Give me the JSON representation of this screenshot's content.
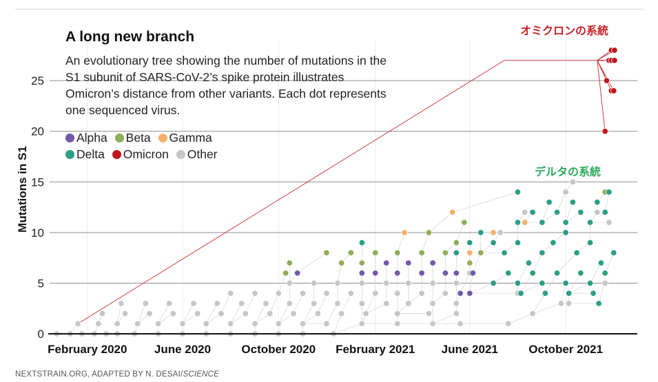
{
  "title": "A long new branch",
  "subtitle": "An evolutionary tree showing the number of mutations in the S1 subunit of SARS-CoV-2’s spike protein illustrates Omicron’s distance from other variants. Each dot represents one sequenced virus.",
  "annotations": {
    "omicron": "オミクロンの系統",
    "delta": "デルタの系統"
  },
  "source": {
    "text": "NEXTSTRAIN.ORG, ADAPTED BY N. DESAI/",
    "italic": "SCIENCE"
  },
  "colors": {
    "Alpha": "#7358a8",
    "Beta": "#8fae5a",
    "Gamma": "#f3b26b",
    "Delta": "#2c9e86",
    "Omicron": "#c0171d",
    "Other": "#c6c6c6"
  },
  "legend": [
    {
      "name": "Alpha"
    },
    {
      "name": "Beta"
    },
    {
      "name": "Gamma"
    },
    {
      "name": "Delta"
    },
    {
      "name": "Omicron"
    },
    {
      "name": "Other"
    }
  ],
  "chart_data": {
    "type": "scatter",
    "title": "A long new branch",
    "ylabel": "Mutations in S1",
    "xlabel": "",
    "xlim": [
      "2019-12-15",
      "2021-12-31"
    ],
    "ylim": [
      0,
      28
    ],
    "yticks": [
      0,
      5,
      10,
      15,
      20,
      25
    ],
    "xticks": [
      {
        "date": "2020-02-01",
        "label": "February 2020"
      },
      {
        "date": "2020-06-01",
        "label": "June 2020"
      },
      {
        "date": "2020-10-01",
        "label": "October 2020"
      },
      {
        "date": "2021-02-01",
        "label": "February 2021"
      },
      {
        "date": "2021-06-01",
        "label": "June 2021"
      },
      {
        "date": "2021-10-01",
        "label": "October 2021"
      }
    ],
    "grid": true,
    "legend_position": "top-left",
    "series": [
      {
        "name": "Other",
        "points": [
          [
            "2019-12-24",
            0
          ],
          [
            "2020-01-10",
            0
          ],
          [
            "2020-01-25",
            0
          ],
          [
            "2020-02-10",
            0
          ],
          [
            "2020-02-25",
            0
          ],
          [
            "2020-03-10",
            0
          ],
          [
            "2020-04-01",
            0
          ],
          [
            "2020-05-01",
            0
          ],
          [
            "2020-06-01",
            0
          ],
          [
            "2020-07-01",
            0
          ],
          [
            "2020-08-01",
            0
          ],
          [
            "2020-09-01",
            0
          ],
          [
            "2020-10-01",
            0
          ],
          [
            "2020-11-01",
            0
          ],
          [
            "2020-12-10",
            0
          ],
          [
            "2020-01-20",
            1
          ],
          [
            "2020-02-15",
            1
          ],
          [
            "2020-03-10",
            1
          ],
          [
            "2020-04-05",
            1
          ],
          [
            "2020-05-01",
            1
          ],
          [
            "2020-06-01",
            1
          ],
          [
            "2020-07-01",
            1
          ],
          [
            "2020-08-01",
            1
          ],
          [
            "2020-09-01",
            1
          ],
          [
            "2020-10-01",
            1
          ],
          [
            "2020-11-01",
            1
          ],
          [
            "2020-12-01",
            1
          ],
          [
            "2021-01-15",
            1
          ],
          [
            "2021-03-01",
            1
          ],
          [
            "2021-04-15",
            1
          ],
          [
            "2021-05-20",
            1
          ],
          [
            "2021-07-20",
            1
          ],
          [
            "2020-02-20",
            2
          ],
          [
            "2020-03-20",
            2
          ],
          [
            "2020-04-20",
            2
          ],
          [
            "2020-05-20",
            2
          ],
          [
            "2020-06-20",
            2
          ],
          [
            "2020-07-20",
            2
          ],
          [
            "2020-08-20",
            2
          ],
          [
            "2020-09-20",
            2
          ],
          [
            "2020-10-20",
            2
          ],
          [
            "2020-11-20",
            2
          ],
          [
            "2020-12-20",
            2
          ],
          [
            "2021-01-20",
            2
          ],
          [
            "2021-03-01",
            2
          ],
          [
            "2021-04-10",
            2
          ],
          [
            "2021-05-15",
            2
          ],
          [
            "2021-08-20",
            2
          ],
          [
            "2020-03-15",
            3
          ],
          [
            "2020-04-15",
            3
          ],
          [
            "2020-05-15",
            3
          ],
          [
            "2020-06-15",
            3
          ],
          [
            "2020-07-15",
            3
          ],
          [
            "2020-08-15",
            3
          ],
          [
            "2020-09-15",
            3
          ],
          [
            "2020-10-15",
            3
          ],
          [
            "2020-11-15",
            3
          ],
          [
            "2020-12-15",
            3
          ],
          [
            "2021-01-15",
            3
          ],
          [
            "2021-02-15",
            3
          ],
          [
            "2021-03-15",
            3
          ],
          [
            "2021-04-15",
            3
          ],
          [
            "2021-05-15",
            3
          ],
          [
            "2021-09-25",
            3
          ],
          [
            "2021-10-05",
            3
          ],
          [
            "2020-08-01",
            4
          ],
          [
            "2020-09-01",
            4
          ],
          [
            "2020-10-01",
            4
          ],
          [
            "2020-11-01",
            4
          ],
          [
            "2020-12-01",
            4
          ],
          [
            "2021-01-01",
            4
          ],
          [
            "2021-02-01",
            4
          ],
          [
            "2021-03-01",
            4
          ],
          [
            "2021-04-01",
            4
          ],
          [
            "2021-05-01",
            4
          ],
          [
            "2021-08-01",
            4
          ],
          [
            "2020-10-15",
            5
          ],
          [
            "2020-11-15",
            5
          ],
          [
            "2020-12-15",
            5
          ],
          [
            "2021-01-15",
            5
          ],
          [
            "2021-02-15",
            5
          ],
          [
            "2021-03-15",
            5
          ],
          [
            "2021-04-15",
            5
          ],
          [
            "2021-05-15",
            5
          ],
          [
            "2021-11-20",
            5
          ],
          [
            "2021-02-01",
            6
          ],
          [
            "2021-03-01",
            6
          ],
          [
            "2021-04-01",
            6
          ],
          [
            "2021-05-01",
            6
          ],
          [
            "2021-06-01",
            6
          ],
          [
            "2021-07-10",
            10
          ],
          [
            "2021-08-10",
            12
          ],
          [
            "2021-09-10",
            13
          ],
          [
            "2021-10-01",
            14
          ],
          [
            "2021-10-10",
            15
          ],
          [
            "2021-11-10",
            12
          ],
          [
            "2021-11-25",
            11
          ]
        ]
      },
      {
        "name": "Beta",
        "points": [
          [
            "2020-10-10",
            6
          ],
          [
            "2020-10-15",
            7
          ],
          [
            "2020-12-01",
            8
          ],
          [
            "2020-12-20",
            7
          ],
          [
            "2021-01-01",
            8
          ],
          [
            "2021-01-15",
            7
          ],
          [
            "2021-02-01",
            8
          ],
          [
            "2021-02-15",
            7
          ],
          [
            "2021-03-01",
            8
          ],
          [
            "2021-03-15",
            7
          ],
          [
            "2021-04-01",
            8
          ],
          [
            "2021-04-15",
            7
          ],
          [
            "2021-05-01",
            8
          ],
          [
            "2021-05-15",
            9
          ],
          [
            "2021-06-01",
            7
          ],
          [
            "2021-06-15",
            8
          ],
          [
            "2021-04-10",
            10
          ],
          [
            "2021-05-25",
            11
          ],
          [
            "2021-11-20",
            14
          ]
        ]
      },
      {
        "name": "Gamma",
        "points": [
          [
            "2021-03-10",
            10
          ],
          [
            "2021-05-10",
            12
          ],
          [
            "2021-06-01",
            8
          ],
          [
            "2021-07-01",
            10
          ],
          [
            "2021-08-10",
            11
          ]
        ]
      },
      {
        "name": "Alpha",
        "points": [
          [
            "2020-10-25",
            6
          ],
          [
            "2021-01-15",
            6
          ],
          [
            "2021-02-01",
            6
          ],
          [
            "2021-02-15",
            7
          ],
          [
            "2021-03-01",
            6
          ],
          [
            "2021-03-15",
            7
          ],
          [
            "2021-04-01",
            6
          ],
          [
            "2021-04-15",
            7
          ],
          [
            "2021-05-01",
            6
          ],
          [
            "2021-05-15",
            6
          ],
          [
            "2021-05-20",
            4
          ],
          [
            "2021-06-01",
            4
          ],
          [
            "2021-06-05",
            6
          ]
        ]
      },
      {
        "name": "Delta",
        "points": [
          [
            "2021-01-15",
            9
          ],
          [
            "2021-05-15",
            8
          ],
          [
            "2021-06-01",
            9
          ],
          [
            "2021-06-15",
            10
          ],
          [
            "2021-07-01",
            9
          ],
          [
            "2021-07-15",
            8
          ],
          [
            "2021-08-01",
            9
          ],
          [
            "2021-08-15",
            7
          ],
          [
            "2021-09-01",
            8
          ],
          [
            "2021-09-15",
            9
          ],
          [
            "2021-10-01",
            10
          ],
          [
            "2021-10-15",
            8
          ],
          [
            "2021-11-01",
            9
          ],
          [
            "2021-11-15",
            7
          ],
          [
            "2021-12-01",
            8
          ],
          [
            "2021-07-01",
            5
          ],
          [
            "2021-08-01",
            5
          ],
          [
            "2021-09-01",
            5
          ],
          [
            "2021-10-01",
            5
          ],
          [
            "2021-11-01",
            5
          ],
          [
            "2021-07-20",
            6
          ],
          [
            "2021-08-20",
            6
          ],
          [
            "2021-09-20",
            6
          ],
          [
            "2021-10-20",
            6
          ],
          [
            "2021-11-20",
            6
          ],
          [
            "2021-08-05",
            4
          ],
          [
            "2021-09-05",
            4
          ],
          [
            "2021-10-05",
            4
          ],
          [
            "2021-11-05",
            4
          ],
          [
            "2021-11-12",
            3
          ],
          [
            "2021-08-01",
            11
          ],
          [
            "2021-09-01",
            11
          ],
          [
            "2021-10-01",
            11
          ],
          [
            "2021-11-01",
            11
          ],
          [
            "2021-08-20",
            12
          ],
          [
            "2021-09-20",
            12
          ],
          [
            "2021-10-20",
            12
          ],
          [
            "2021-11-20",
            12
          ],
          [
            "2021-09-10",
            13
          ],
          [
            "2021-10-10",
            13
          ],
          [
            "2021-11-10",
            13
          ],
          [
            "2021-08-01",
            14
          ],
          [
            "2021-11-25",
            14
          ]
        ]
      },
      {
        "name": "Omicron",
        "points": [
          [
            "2021-11-20",
            20
          ],
          [
            "2021-11-22",
            25
          ],
          [
            "2021-11-28",
            24
          ],
          [
            "2021-12-01",
            24
          ],
          [
            "2021-11-25",
            27
          ],
          [
            "2021-11-28",
            27
          ],
          [
            "2021-12-02",
            27
          ],
          [
            "2021-11-28",
            28
          ],
          [
            "2021-12-02",
            28
          ]
        ]
      }
    ]
  }
}
